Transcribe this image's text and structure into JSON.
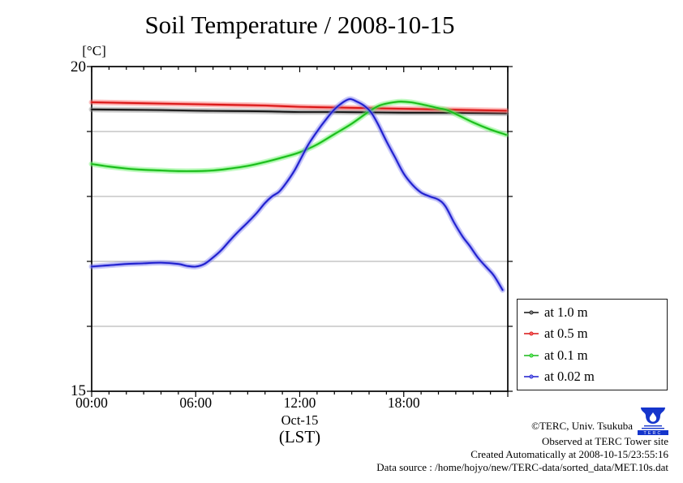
{
  "chart_data": {
    "type": "line",
    "title": "Soil Temperature / 2008-10-15",
    "unit_label": "[°C]",
    "xlabel_date": "Oct-15",
    "xlabel_tz": "(LST)",
    "ylim": [
      15,
      20
    ],
    "xlim_hours": [
      0,
      24
    ],
    "y_top_label": "20",
    "y_bottom_label": "15",
    "grid_values": [
      16,
      17,
      18,
      19
    ],
    "x_ticks": [
      {
        "t": 0,
        "label": "00:00"
      },
      {
        "t": 6,
        "label": "06:00"
      },
      {
        "t": 12,
        "label": "12:00"
      },
      {
        "t": 18,
        "label": "18:00"
      }
    ],
    "legend_position": "outside-right-bottom",
    "grid": true,
    "series": [
      {
        "name": "at 1.0 m",
        "color": "#111111",
        "fuzz_color": "#808080",
        "x": [
          0,
          2,
          4,
          6,
          8,
          10,
          12,
          14,
          16,
          18,
          20,
          22,
          23.9
        ],
        "y": [
          19.34,
          19.335,
          19.33,
          19.32,
          19.315,
          19.31,
          19.3,
          19.3,
          19.295,
          19.29,
          19.29,
          19.285,
          19.28
        ]
      },
      {
        "name": "at 0.5 m",
        "color": "#d81414",
        "fuzz_color": "#f86060",
        "x": [
          0,
          2,
          4,
          6,
          8,
          10,
          12,
          14,
          16,
          18,
          20,
          22,
          23.9
        ],
        "y": [
          19.45,
          19.44,
          19.43,
          19.42,
          19.41,
          19.4,
          19.38,
          19.37,
          19.36,
          19.35,
          19.34,
          19.33,
          19.32
        ]
      },
      {
        "name": "at 0.1 m",
        "color": "#18b818",
        "fuzz_color": "#63ee63",
        "x": [
          0,
          1,
          2,
          3,
          4,
          5,
          6,
          7,
          8,
          9,
          10,
          11,
          12,
          13,
          14,
          15,
          16,
          16.6,
          17.2,
          17.8,
          18.4,
          19,
          20,
          20.5,
          21,
          22,
          23,
          23.9
        ],
        "y": [
          18.5,
          18.46,
          18.43,
          18.41,
          18.4,
          18.39,
          18.39,
          18.4,
          18.43,
          18.47,
          18.53,
          18.6,
          18.68,
          18.8,
          18.96,
          19.12,
          19.31,
          19.4,
          19.44,
          19.46,
          19.45,
          19.42,
          19.36,
          19.33,
          19.27,
          19.14,
          19.03,
          18.95
        ]
      },
      {
        "name": "at 0.02 m",
        "color": "#1c1ccc",
        "fuzz_color": "#7878f0",
        "x": [
          0,
          1,
          2,
          3,
          4,
          5,
          5.5,
          6,
          6.5,
          7,
          7.5,
          8,
          8.5,
          9,
          9.5,
          10,
          10.4,
          10.8,
          11.2,
          11.7,
          12.1,
          12.5,
          13,
          13.5,
          14,
          14.5,
          14.9,
          15.3,
          15.7,
          16.1,
          16.5,
          17,
          17.5,
          18,
          18.5,
          19,
          19.5,
          20,
          20.4,
          20.9,
          21.4,
          21.8,
          22.3,
          22.8,
          23.2,
          23.7
        ],
        "y": [
          16.92,
          16.94,
          16.96,
          16.97,
          16.98,
          16.96,
          16.93,
          16.92,
          16.96,
          17.06,
          17.18,
          17.33,
          17.47,
          17.6,
          17.74,
          17.9,
          18.0,
          18.07,
          18.2,
          18.4,
          18.6,
          18.8,
          19.0,
          19.18,
          19.34,
          19.45,
          19.5,
          19.46,
          19.4,
          19.3,
          19.12,
          18.85,
          18.6,
          18.35,
          18.18,
          18.06,
          18.0,
          17.95,
          17.85,
          17.6,
          17.38,
          17.24,
          17.05,
          16.9,
          16.78,
          16.56
        ]
      }
    ]
  },
  "credits": {
    "copyright": "©TERC, Univ. Tsukuba",
    "observed": "Observed at TERC Tower site",
    "created": "Created Automatically at 2008-10-15/23:55:16",
    "datasource": "Data source : /home/hojyo/new/TERC-data/sorted_data/MET.10s.dat",
    "logo_text": "TERC"
  }
}
